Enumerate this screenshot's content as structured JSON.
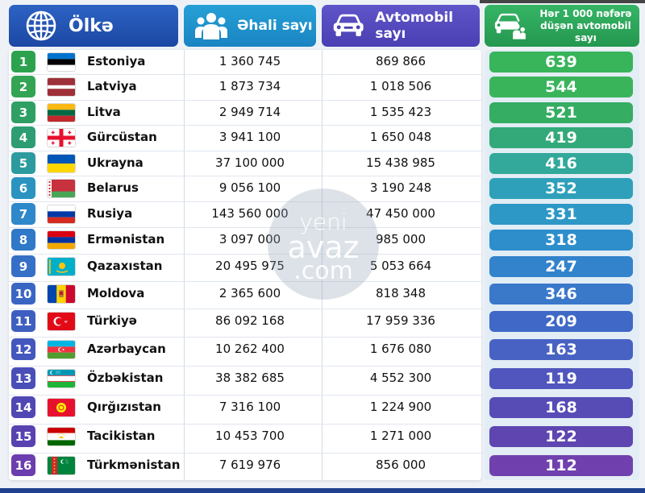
{
  "header": {
    "country_label": "Ölkə",
    "population_label": "Əhali sayı",
    "cars_label": "Avtomobil sayı",
    "per_label_line1": "Hər 1 000 nəfərə",
    "per_label_line2": "düşən avtomobil sayı"
  },
  "watermark": {
    "line1": "yeni",
    "line2": "avaz",
    "line3": ".com"
  },
  "colors": {
    "rank": [
      "#2ca24f",
      "#33a454",
      "#2f9f64",
      "#2e9d73",
      "#2b9ba0",
      "#2a93c0",
      "#2e88c9",
      "#3078c8",
      "#3670c6",
      "#3a66c3",
      "#3e5ec0",
      "#4357bd",
      "#4a4fb8",
      "#5147b3",
      "#5842b0",
      "#6b3dae"
    ],
    "per": [
      "#38b45a",
      "#3ab45b",
      "#35ad63",
      "#33a97a",
      "#32a99a",
      "#2ea0ba",
      "#2d98c6",
      "#2e8ecb",
      "#3283cc",
      "#3a78ca",
      "#4068c6",
      "#4862c3",
      "#5056bd",
      "#574cb6",
      "#5e45b0",
      "#7041ae"
    ]
  },
  "rows": [
    {
      "rank": "1",
      "country": "Estoniya",
      "population": "1 360 745",
      "cars": "869 866",
      "per_1000": "639",
      "flag": "estonia-flag"
    },
    {
      "rank": "2",
      "country": "Latviya",
      "population": "1 873 734",
      "cars": "1 018 506",
      "per_1000": "544",
      "flag": "latvia-flag"
    },
    {
      "rank": "3",
      "country": "Litva",
      "population": "2 949 714",
      "cars": "1 535 423",
      "per_1000": "521",
      "flag": "lithuania-flag"
    },
    {
      "rank": "4",
      "country": "Gürcüstan",
      "population": "3 941 100",
      "cars": "1 650 048",
      "per_1000": "419",
      "flag": "georgia-flag"
    },
    {
      "rank": "5",
      "country": "Ukrayna",
      "population": "37 100 000",
      "cars": "15 438 985",
      "per_1000": "416",
      "flag": "ukraine-flag"
    },
    {
      "rank": "6",
      "country": "Belarus",
      "population": "9 056 100",
      "cars": "3 190 248",
      "per_1000": "352",
      "flag": "belarus-flag"
    },
    {
      "rank": "7",
      "country": "Rusiya",
      "population": "143 560 000",
      "cars": "47 450 000",
      "per_1000": "331",
      "flag": "russia-flag"
    },
    {
      "rank": "8",
      "country": "Ermənistan",
      "population": "3 097 000",
      "cars": "985 000",
      "per_1000": "318",
      "flag": "armenia-flag"
    },
    {
      "rank": "9",
      "country": "Qazaxıstan",
      "population": "20 495 975",
      "cars": "5 053 664",
      "per_1000": "247",
      "flag": "kazakhstan-flag"
    },
    {
      "rank": "10",
      "country": "Moldova",
      "population": "2 365 600",
      "cars": "818 348",
      "per_1000": "346",
      "flag": "moldova-flag"
    },
    {
      "rank": "11",
      "country": "Türkiyə",
      "population": "86 092 168",
      "cars": "17 959 336",
      "per_1000": "209",
      "flag": "turkey-flag"
    },
    {
      "rank": "12",
      "country": "Azərbaycan",
      "population": "10 262 400",
      "cars": "1 676 080",
      "per_1000": "163",
      "flag": "azerbaijan-flag"
    },
    {
      "rank": "13",
      "country": "Özbəkistan",
      "population": "38 382 685",
      "cars": "4 552 300",
      "per_1000": "119",
      "flag": "uzbekistan-flag"
    },
    {
      "rank": "14",
      "country": "Qırğızıstan",
      "population": "7 316 100",
      "cars": "1 224 900",
      "per_1000": "168",
      "flag": "kyrgyzstan-flag"
    },
    {
      "rank": "15",
      "country": "Tacikistan",
      "population": "10 453 700",
      "cars": "1 271 000",
      "per_1000": "122",
      "flag": "tajikistan-flag"
    },
    {
      "rank": "16",
      "country": "Türkmənistan",
      "population": "7 619 976",
      "cars": "856 000",
      "per_1000": "112",
      "flag": "turkmenistan-flag"
    }
  ]
}
